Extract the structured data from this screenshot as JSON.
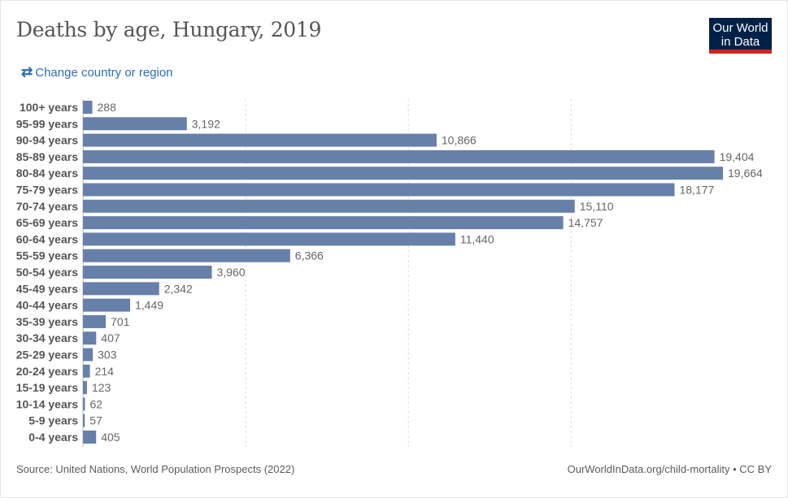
{
  "header": {
    "title": "Deaths by age, Hungary, 2019",
    "change_label": "Change country or region",
    "logo_line1": "Our World",
    "logo_line2": "in Data"
  },
  "footer": {
    "source": "Source: United Nations, World Population Prospects (2022)",
    "credit": "OurWorldInData.org/child-mortality • CC BY"
  },
  "colors": {
    "bar": "#6680aa",
    "grid": "#dddddd",
    "link": "#2c6eb5"
  },
  "chart_data": {
    "type": "bar",
    "orientation": "horizontal",
    "title": "Deaths by age, Hungary, 2019",
    "categories": [
      "100+ years",
      "95-99 years",
      "90-94 years",
      "85-89 years",
      "80-84 years",
      "75-79 years",
      "70-74 years",
      "65-69 years",
      "60-64 years",
      "55-59 years",
      "50-54 years",
      "45-49 years",
      "40-44 years",
      "35-39 years",
      "30-34 years",
      "25-29 years",
      "20-24 years",
      "15-19 years",
      "10-14 years",
      "5-9 years",
      "0-4 years"
    ],
    "values": [
      288,
      3192,
      10866,
      19404,
      19664,
      18177,
      15110,
      14757,
      11440,
      6366,
      3960,
      2342,
      1449,
      701,
      407,
      303,
      214,
      123,
      62,
      57,
      405
    ],
    "value_labels": [
      "288",
      "3,192",
      "10,866",
      "19,404",
      "19,664",
      "18,177",
      "15,110",
      "14,757",
      "11,440",
      "6,366",
      "3,960",
      "2,342",
      "1,449",
      "701",
      "407",
      "303",
      "214",
      "123",
      "62",
      "57",
      "405"
    ],
    "xlim": [
      0,
      19664
    ],
    "gridlines": [
      5000,
      10000,
      15000
    ],
    "grid": true
  }
}
